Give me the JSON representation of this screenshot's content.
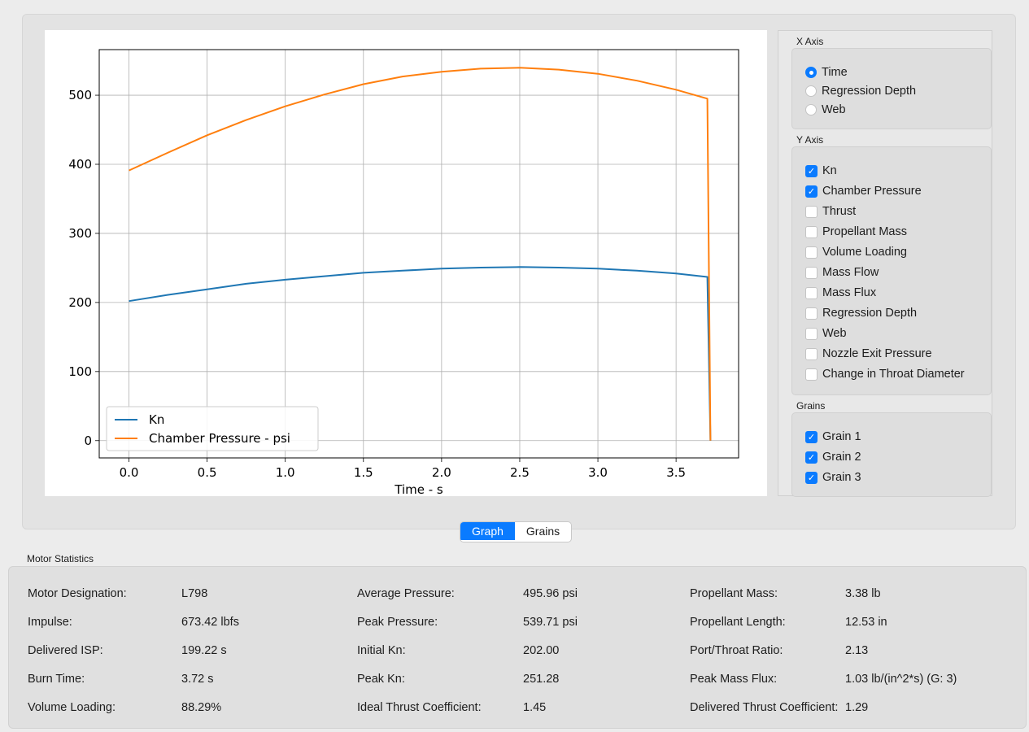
{
  "tabs": [
    {
      "label": "Graph",
      "active": true
    },
    {
      "label": "Grains",
      "active": false
    }
  ],
  "x_axis": {
    "title": "X Axis",
    "options": [
      {
        "label": "Time",
        "selected": true
      },
      {
        "label": "Regression Depth",
        "selected": false
      },
      {
        "label": "Web",
        "selected": false
      }
    ]
  },
  "y_axis": {
    "title": "Y Axis",
    "options": [
      {
        "label": "Kn",
        "checked": true
      },
      {
        "label": "Chamber Pressure",
        "checked": true
      },
      {
        "label": "Thrust",
        "checked": false
      },
      {
        "label": "Propellant Mass",
        "checked": false
      },
      {
        "label": "Volume Loading",
        "checked": false
      },
      {
        "label": "Mass Flow",
        "checked": false
      },
      {
        "label": "Mass Flux",
        "checked": false
      },
      {
        "label": "Regression Depth",
        "checked": false
      },
      {
        "label": "Web",
        "checked": false
      },
      {
        "label": "Nozzle Exit Pressure",
        "checked": false
      },
      {
        "label": "Change in Throat Diameter",
        "checked": false
      }
    ]
  },
  "grains": {
    "title": "Grains",
    "options": [
      {
        "label": "Grain 1",
        "checked": true
      },
      {
        "label": "Grain 2",
        "checked": true
      },
      {
        "label": "Grain 3",
        "checked": true
      }
    ]
  },
  "chart_data": {
    "type": "line",
    "title": "",
    "xlabel": "Time - s",
    "ylabel": "",
    "xlim": [
      -0.19,
      3.9
    ],
    "ylim": [
      -25,
      566
    ],
    "xticks": [
      0.0,
      0.5,
      1.0,
      1.5,
      2.0,
      2.5,
      3.0,
      3.5
    ],
    "xtick_labels": [
      "0.0",
      "0.5",
      "1.0",
      "1.5",
      "2.0",
      "2.5",
      "3.0",
      "3.5"
    ],
    "yticks": [
      0,
      100,
      200,
      300,
      400,
      500
    ],
    "ytick_labels": [
      "0",
      "100",
      "200",
      "300",
      "400",
      "500"
    ],
    "grid": true,
    "legend_position": "lower-left",
    "series": [
      {
        "name": "Kn",
        "color": "#1f77b4",
        "x": [
          0.0,
          0.25,
          0.5,
          0.75,
          1.0,
          1.25,
          1.5,
          1.75,
          2.0,
          2.25,
          2.5,
          2.75,
          3.0,
          3.25,
          3.5,
          3.7,
          3.72
        ],
        "y": [
          202,
          211,
          219,
          227,
          233,
          238,
          243,
          246,
          249,
          250.5,
          251.3,
          250.5,
          249,
          246,
          242,
          237,
          0
        ]
      },
      {
        "name": "Chamber Pressure - psi",
        "color": "#ff7f0e",
        "x": [
          0.0,
          0.25,
          0.5,
          0.75,
          1.0,
          1.25,
          1.5,
          1.75,
          2.0,
          2.25,
          2.5,
          2.75,
          3.0,
          3.25,
          3.5,
          3.7,
          3.72
        ],
        "y": [
          391,
          417,
          442,
          464,
          484,
          501,
          516,
          527,
          534,
          538.5,
          539.7,
          537,
          531,
          521,
          508,
          495,
          0
        ]
      }
    ]
  },
  "stats": {
    "title": "Motor Statistics",
    "rows": [
      [
        {
          "label": "Motor Designation:",
          "value": "L798"
        },
        {
          "label": "Average Pressure:",
          "value": "495.96 psi"
        },
        {
          "label": "Propellant Mass:",
          "value": "3.38 lb"
        }
      ],
      [
        {
          "label": "Impulse:",
          "value": "673.42 lbfs"
        },
        {
          "label": "Peak Pressure:",
          "value": "539.71 psi"
        },
        {
          "label": "Propellant Length:",
          "value": "12.53 in"
        }
      ],
      [
        {
          "label": "Delivered ISP:",
          "value": "199.22 s"
        },
        {
          "label": "Initial Kn:",
          "value": "202.00"
        },
        {
          "label": "Port/Throat Ratio:",
          "value": "2.13"
        }
      ],
      [
        {
          "label": "Burn Time:",
          "value": "3.72 s"
        },
        {
          "label": "Peak Kn:",
          "value": "251.28"
        },
        {
          "label": "Peak Mass Flux:",
          "value": "1.03 lb/(in^2*s) (G: 3)"
        }
      ],
      [
        {
          "label": "Volume Loading:",
          "value": "88.29%"
        },
        {
          "label": "Ideal Thrust Coefficient:",
          "value": "1.45"
        },
        {
          "label": "Delivered Thrust Coefficient:",
          "value": "1.29"
        }
      ]
    ]
  }
}
